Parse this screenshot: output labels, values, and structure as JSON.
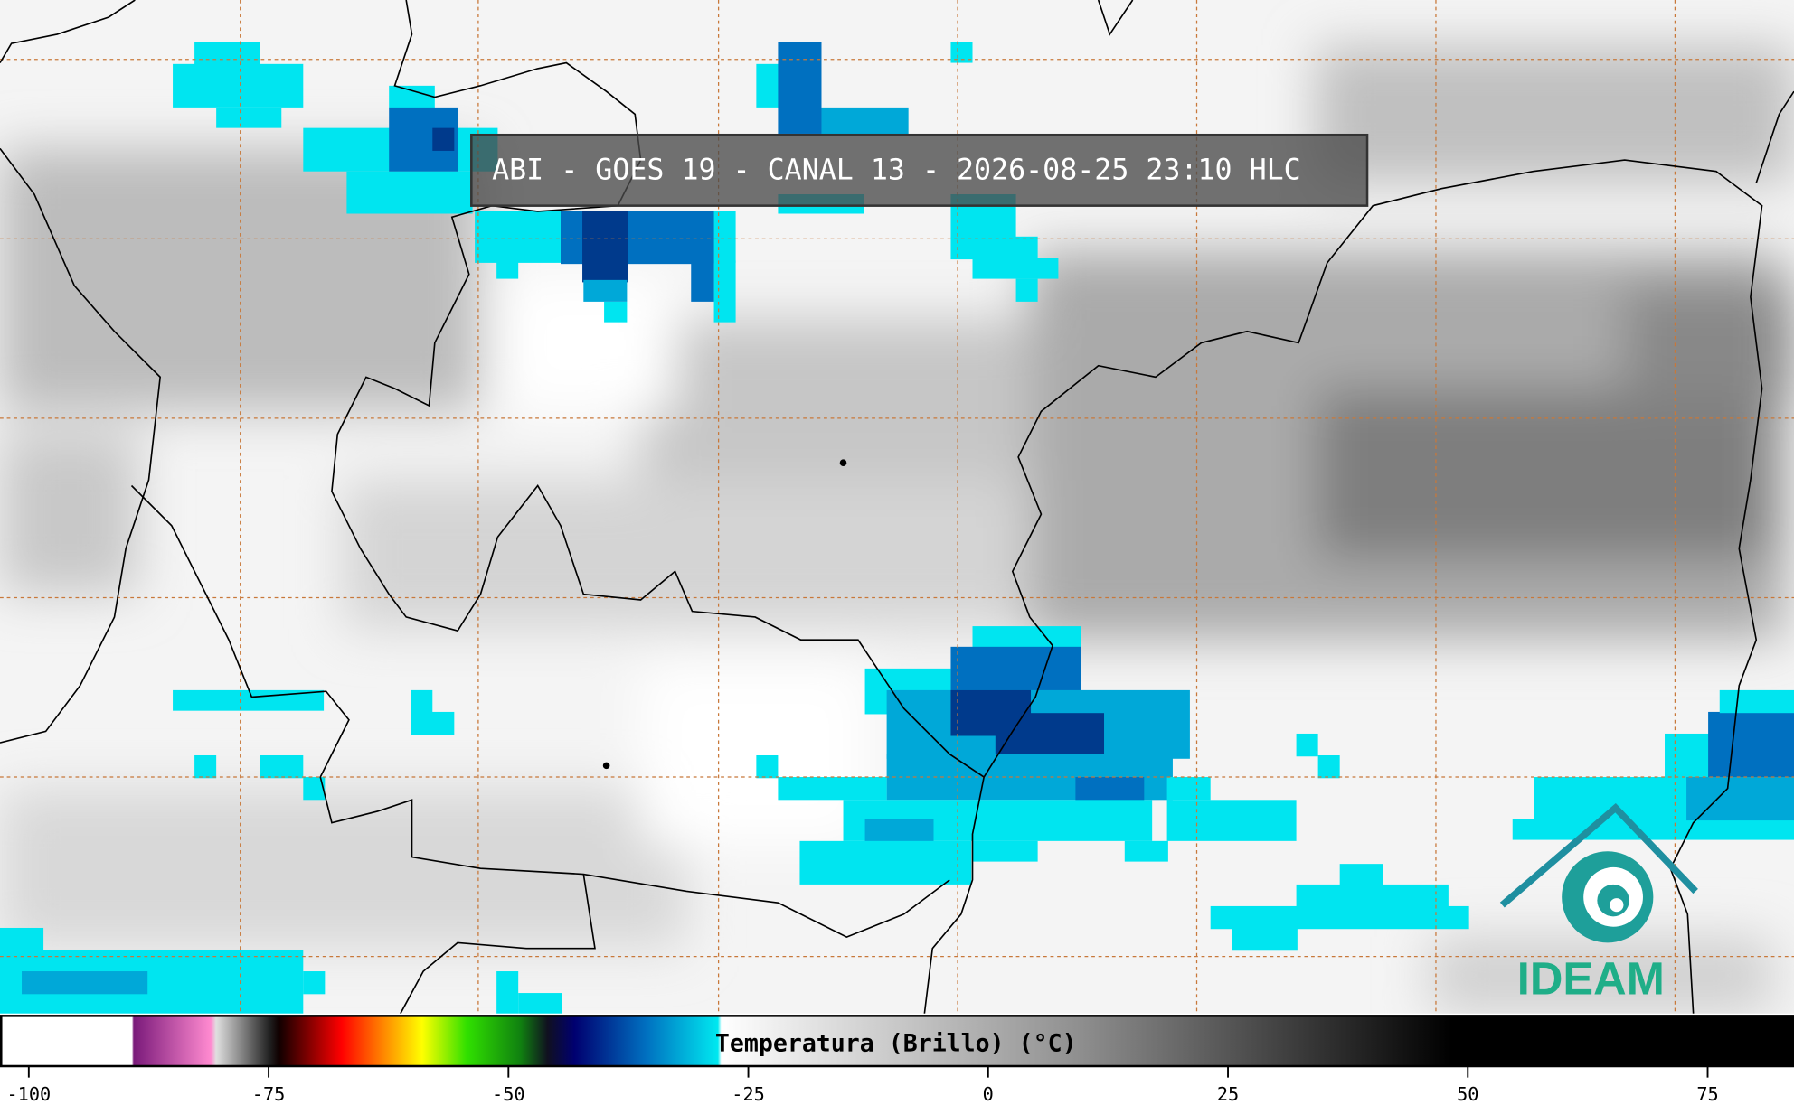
{
  "title": "ABI - GOES 19 - CANAL 13 - 2026-08-25 23:10 HLC",
  "colorbar": {
    "label": "Temperatura (Brillo) (°C)",
    "lim": [
      -103,
      84
    ],
    "ticks": [
      -100,
      -75,
      -50,
      -25,
      0,
      25,
      50,
      75
    ]
  },
  "logo": "IDEAM"
}
